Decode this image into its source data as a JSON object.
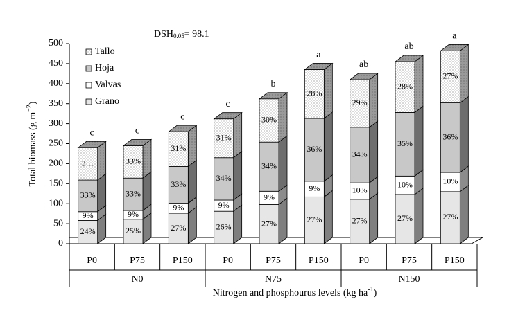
{
  "chart_data": {
    "type": "stacked-bar-3d",
    "annotation": {
      "main": "DSH",
      "sub": "0.05",
      "rest": "= 98.1"
    },
    "y_label": {
      "main": "Total biomass (g m",
      "sup": "−2",
      "end": ")"
    },
    "x_label": {
      "main": "Nitrogen and phosphourus levels (kg ha",
      "sup": "-1",
      "end": ")"
    },
    "categories": [
      "P0",
      "P75",
      "P150",
      "P0",
      "P75",
      "P150",
      "P0",
      "P75",
      "P150"
    ],
    "groups": [
      {
        "name": "N0",
        "size": 3
      },
      {
        "name": "N75",
        "size": 3
      },
      {
        "name": "N150",
        "size": 3
      }
    ],
    "significance": [
      "c",
      "c",
      "c",
      "c",
      "b",
      "a",
      "ab",
      "ab",
      "a"
    ],
    "series": [
      {
        "name": "Grano",
        "color": "#e6e6e6",
        "pattern": "none",
        "values": [
          58,
          61,
          76,
          81,
          98,
          117,
          111,
          123,
          130
        ],
        "percent_labels": [
          "24%",
          "25%",
          "27%",
          "26%",
          "27%",
          "27%",
          "27%",
          "27%",
          "27%"
        ]
      },
      {
        "name": "Valvas",
        "color": "#ffffff",
        "pattern": "none",
        "values": [
          22,
          22,
          25,
          28,
          33,
          39,
          41,
          46,
          48
        ],
        "percent_labels": [
          "9%",
          "9%",
          "9%",
          "9%",
          "9%",
          "9%",
          "10%",
          "10%",
          "10%"
        ]
      },
      {
        "name": "Hoja",
        "color": "#c8c8c8",
        "pattern": "none",
        "values": [
          79,
          81,
          92,
          106,
          123,
          157,
          139,
          159,
          174
        ],
        "percent_labels": [
          "33%",
          "33%",
          "33%",
          "34%",
          "34%",
          "36%",
          "34%",
          "35%",
          "36%"
        ]
      },
      {
        "name": "Tallo",
        "color": "#ffffff",
        "pattern": "dots",
        "values": [
          81,
          81,
          87,
          97,
          108,
          122,
          119,
          127,
          130
        ],
        "percent_labels": [
          "3…",
          "33%",
          "31%",
          "31%",
          "30%",
          "28%",
          "29%",
          "28%",
          "27%"
        ]
      }
    ],
    "ylim": [
      0,
      500
    ],
    "yticks": [
      0,
      50,
      100,
      150,
      200,
      250,
      300,
      350,
      400,
      450,
      500
    ]
  }
}
